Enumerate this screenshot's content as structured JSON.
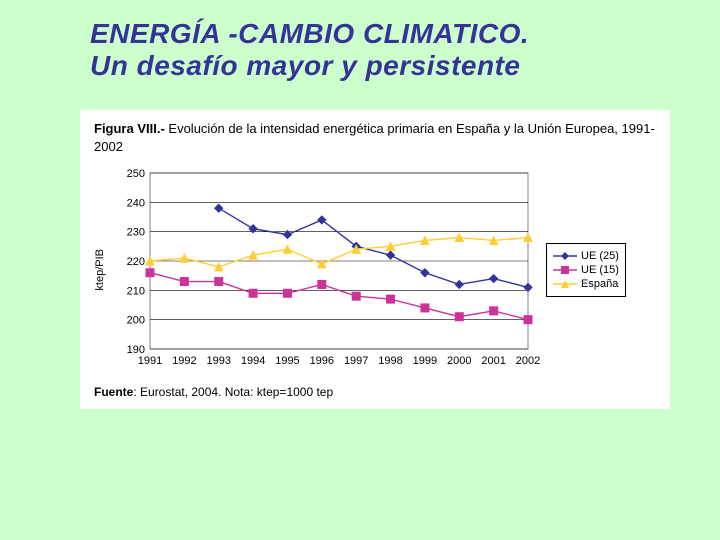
{
  "title": {
    "line1": "ENERGÍA -CAMBIO CLIMATICO.",
    "line2": "Un desafío mayor y persistente",
    "color": "#333399",
    "fontsize": 28
  },
  "figure": {
    "title_prefix": "Figura VIII.- ",
    "title_rest": "Evolución de la intensidad energética primaria en España y la Unión Europea, 1991-2002",
    "footer_prefix": "Fuente",
    "footer_rest": ": Eurostat, 2004. Nota: ktep=1000 tep",
    "background_color": "#ffffff"
  },
  "chart": {
    "type": "line",
    "ylabel": "ktep/PIB",
    "years": [
      "1991",
      "1992",
      "1993",
      "1994",
      "1995",
      "1996",
      "1997",
      "1998",
      "1999",
      "2000",
      "2001",
      "2002"
    ],
    "ylim": [
      190,
      250
    ],
    "ytick_step": 10,
    "yticks": [
      190,
      200,
      210,
      220,
      230,
      240,
      250
    ],
    "grid_color": "#000000",
    "axis_color": "#808080",
    "plot_bg": "#ffffff",
    "label_fontsize": 11,
    "marker_size": 4,
    "line_width": 1.4,
    "series": [
      {
        "name": "UE (25)",
        "color": "#333399",
        "marker": "diamond",
        "values": [
          null,
          null,
          238,
          231,
          229,
          234,
          225,
          222,
          216,
          212,
          214,
          211
        ]
      },
      {
        "name": "UE (15)",
        "color": "#cc3399",
        "marker": "square",
        "values": [
          216,
          213,
          213,
          209,
          209,
          212,
          208,
          207,
          204,
          201,
          203,
          200
        ]
      },
      {
        "name": "España",
        "color": "#ffcc33",
        "marker": "triangle",
        "values": [
          220,
          221,
          218,
          222,
          224,
          219,
          224,
          225,
          227,
          228,
          227,
          228
        ]
      }
    ],
    "legend": {
      "border_color": "#000000",
      "fontsize": 11
    }
  },
  "page_bg": "#ccffcc"
}
